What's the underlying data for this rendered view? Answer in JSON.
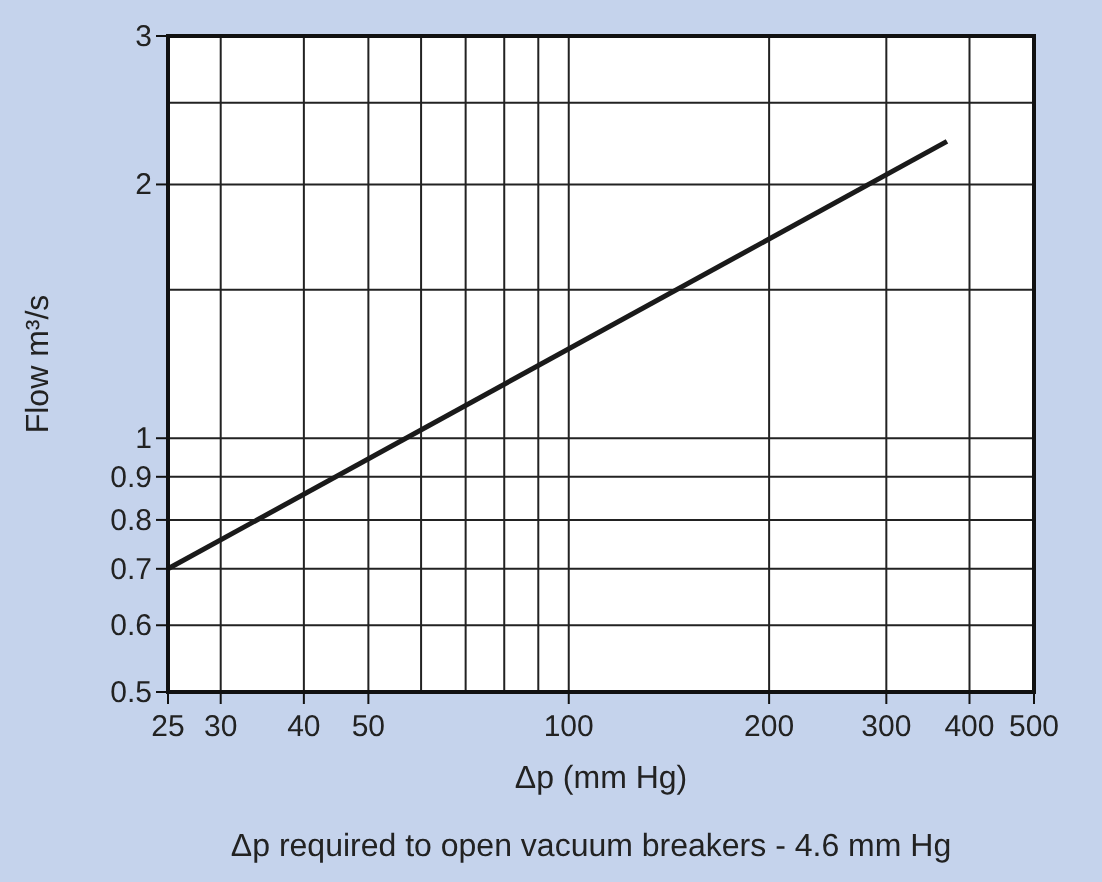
{
  "chart_data": {
    "type": "line",
    "xlabel": "Δp (mm Hg)",
    "ylabel": "Flow m³/s",
    "log": "xy",
    "grid": true,
    "marker": "none",
    "line_style": "solid",
    "series": [
      {
        "color": "#1a1a1a",
        "x": [
          25,
          370
        ],
        "values": [
          0.7,
          2.25
        ]
      }
    ],
    "xlim": [
      25,
      500
    ],
    "xticks": [
      25,
      30,
      40,
      50,
      {
        "value": 60,
        "label": null
      },
      {
        "value": 70,
        "label": null
      },
      {
        "value": 80,
        "label": null
      },
      {
        "value": 90,
        "label": null
      },
      100,
      200,
      300,
      400,
      500
    ],
    "ylim": [
      0.5,
      3
    ],
    "yticks": [
      0.5,
      0.6,
      0.7,
      0.8,
      0.9,
      1,
      {
        "value": 1.5,
        "label": null
      },
      2,
      {
        "value": 2.5,
        "label": null
      },
      3
    ],
    "annotations": [
      "Δp required to open vacuum breakers - 4.6 mm Hg"
    ]
  }
}
